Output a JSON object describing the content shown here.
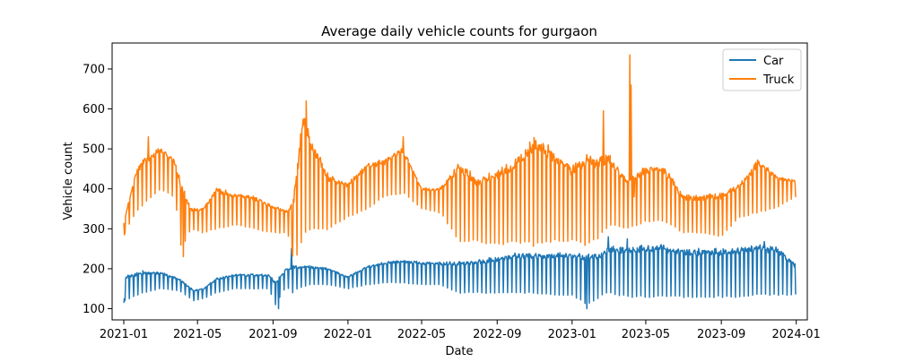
{
  "chart_data": {
    "type": "line",
    "title": "Average daily vehicle counts for gurgaon",
    "xlabel": "Date",
    "ylabel": "Vehicle count",
    "x_ticks": [
      "2021-01",
      "2021-05",
      "2021-09",
      "2022-01",
      "2022-05",
      "2022-09",
      "2023-01",
      "2023-05",
      "2023-09",
      "2024-01"
    ],
    "y_ticks": [
      100,
      200,
      300,
      400,
      500,
      600,
      700
    ],
    "xlim": [
      "2020-12-13",
      "2024-01-19"
    ],
    "ylim": [
      72,
      765
    ],
    "grid": false,
    "legend_position": "top-right",
    "series": [
      {
        "name": "Car",
        "color": "#1f77b4",
        "low_points": [
          [
            "2021-01-01",
            120
          ],
          [
            "2021-02-01",
            140
          ],
          [
            "2021-03-01",
            150
          ],
          [
            "2021-04-01",
            145
          ],
          [
            "2021-04-25",
            120
          ],
          [
            "2021-05-10",
            125
          ],
          [
            "2021-06-01",
            140
          ],
          [
            "2021-07-01",
            150
          ],
          [
            "2021-08-01",
            150
          ],
          [
            "2021-08-25",
            150
          ],
          [
            "2021-09-05",
            110
          ],
          [
            "2021-09-20",
            150
          ],
          [
            "2021-10-10",
            150
          ],
          [
            "2021-11-01",
            160
          ],
          [
            "2021-12-01",
            160
          ],
          [
            "2022-01-01",
            150
          ],
          [
            "2022-02-01",
            160
          ],
          [
            "2022-03-01",
            165
          ],
          [
            "2022-04-01",
            165
          ],
          [
            "2022-05-01",
            160
          ],
          [
            "2022-06-01",
            160
          ],
          [
            "2022-07-01",
            140
          ],
          [
            "2022-08-01",
            140
          ],
          [
            "2022-09-01",
            140
          ],
          [
            "2022-10-01",
            140
          ],
          [
            "2022-11-01",
            140
          ],
          [
            "2022-12-01",
            135
          ],
          [
            "2023-01-01",
            135
          ],
          [
            "2023-01-25",
            110
          ],
          [
            "2023-02-15",
            130
          ],
          [
            "2023-03-01",
            140
          ],
          [
            "2023-04-01",
            130
          ],
          [
            "2023-05-01",
            130
          ],
          [
            "2023-06-01",
            130
          ],
          [
            "2023-07-01",
            130
          ],
          [
            "2023-08-01",
            130
          ],
          [
            "2023-09-01",
            130
          ],
          [
            "2023-10-01",
            130
          ],
          [
            "2023-11-01",
            135
          ],
          [
            "2023-12-01",
            135
          ],
          [
            "2023-12-31",
            135
          ]
        ],
        "high_points": [
          [
            "2021-01-01",
            180
          ],
          [
            "2021-02-01",
            190
          ],
          [
            "2021-03-01",
            190
          ],
          [
            "2021-04-01",
            175
          ],
          [
            "2021-04-25",
            145
          ],
          [
            "2021-05-10",
            150
          ],
          [
            "2021-06-01",
            175
          ],
          [
            "2021-07-01",
            185
          ],
          [
            "2021-08-01",
            185
          ],
          [
            "2021-08-25",
            185
          ],
          [
            "2021-09-05",
            165
          ],
          [
            "2021-09-20",
            195
          ],
          [
            "2021-10-01",
            205
          ],
          [
            "2021-11-01",
            205
          ],
          [
            "2021-12-01",
            200
          ],
          [
            "2022-01-01",
            180
          ],
          [
            "2022-02-01",
            205
          ],
          [
            "2022-03-01",
            215
          ],
          [
            "2022-04-01",
            220
          ],
          [
            "2022-05-01",
            215
          ],
          [
            "2022-06-01",
            215
          ],
          [
            "2022-07-01",
            215
          ],
          [
            "2022-08-01",
            220
          ],
          [
            "2022-09-01",
            225
          ],
          [
            "2022-10-01",
            235
          ],
          [
            "2022-11-01",
            235
          ],
          [
            "2022-12-01",
            235
          ],
          [
            "2023-01-01",
            235
          ],
          [
            "2023-01-25",
            230
          ],
          [
            "2023-02-15",
            235
          ],
          [
            "2023-03-01",
            250
          ],
          [
            "2023-04-01",
            250
          ],
          [
            "2023-05-01",
            255
          ],
          [
            "2023-06-01",
            255
          ],
          [
            "2023-07-01",
            245
          ],
          [
            "2023-08-01",
            245
          ],
          [
            "2023-09-01",
            245
          ],
          [
            "2023-10-01",
            250
          ],
          [
            "2023-11-01",
            255
          ],
          [
            "2023-12-01",
            250
          ],
          [
            "2023-12-31",
            210
          ]
        ],
        "spikes": [
          [
            "2021-01-01",
            115
          ],
          [
            "2021-01-02",
            125
          ],
          [
            "2021-02-01",
            195
          ],
          [
            "2021-09-10",
            100
          ],
          [
            "2021-10-01",
            250
          ],
          [
            "2021-10-03",
            140
          ],
          [
            "2023-01-25",
            100
          ],
          [
            "2023-03-01",
            280
          ],
          [
            "2023-04-01",
            275
          ],
          [
            "2023-11-10",
            268
          ]
        ]
      },
      {
        "name": "Truck",
        "color": "#ff7f0e",
        "low_points": [
          [
            "2021-01-01",
            285
          ],
          [
            "2021-01-20",
            340
          ],
          [
            "2021-02-01",
            360
          ],
          [
            "2021-03-01",
            400
          ],
          [
            "2021-03-25",
            380
          ],
          [
            "2021-04-05",
            250
          ],
          [
            "2021-04-20",
            300
          ],
          [
            "2021-05-10",
            290
          ],
          [
            "2021-06-01",
            300
          ],
          [
            "2021-07-01",
            310
          ],
          [
            "2021-08-01",
            300
          ],
          [
            "2021-09-01",
            290
          ],
          [
            "2021-09-25",
            290
          ],
          [
            "2021-10-05",
            215
          ],
          [
            "2021-10-20",
            280
          ],
          [
            "2021-11-01",
            300
          ],
          [
            "2021-12-01",
            300
          ],
          [
            "2022-01-01",
            330
          ],
          [
            "2022-02-01",
            350
          ],
          [
            "2022-03-01",
            380
          ],
          [
            "2022-04-01",
            390
          ],
          [
            "2022-05-01",
            350
          ],
          [
            "2022-06-01",
            340
          ],
          [
            "2022-07-01",
            270
          ],
          [
            "2022-08-01",
            270
          ],
          [
            "2022-09-01",
            260
          ],
          [
            "2022-10-01",
            270
          ],
          [
            "2022-11-01",
            260
          ],
          [
            "2022-12-01",
            270
          ],
          [
            "2023-01-01",
            270
          ],
          [
            "2023-01-25",
            260
          ],
          [
            "2023-02-15",
            280
          ],
          [
            "2023-03-01",
            310
          ],
          [
            "2023-04-01",
            300
          ],
          [
            "2023-05-01",
            320
          ],
          [
            "2023-06-01",
            320
          ],
          [
            "2023-07-01",
            290
          ],
          [
            "2023-08-01",
            290
          ],
          [
            "2023-09-01",
            280
          ],
          [
            "2023-10-01",
            330
          ],
          [
            "2023-11-01",
            340
          ],
          [
            "2023-12-01",
            355
          ],
          [
            "2023-12-31",
            380
          ]
        ],
        "high_points": [
          [
            "2021-01-01",
            315
          ],
          [
            "2021-01-20",
            440
          ],
          [
            "2021-02-01",
            470
          ],
          [
            "2021-03-01",
            500
          ],
          [
            "2021-03-25",
            470
          ],
          [
            "2021-04-05",
            410
          ],
          [
            "2021-04-20",
            350
          ],
          [
            "2021-05-10",
            350
          ],
          [
            "2021-06-01",
            400
          ],
          [
            "2021-07-01",
            385
          ],
          [
            "2021-08-01",
            380
          ],
          [
            "2021-09-01",
            355
          ],
          [
            "2021-09-25",
            345
          ],
          [
            "2021-10-05",
            380
          ],
          [
            "2021-10-20",
            580
          ],
          [
            "2021-11-01",
            520
          ],
          [
            "2021-12-01",
            430
          ],
          [
            "2022-01-01",
            410
          ],
          [
            "2022-02-01",
            460
          ],
          [
            "2022-03-01",
            470
          ],
          [
            "2022-04-01",
            500
          ],
          [
            "2022-05-01",
            400
          ],
          [
            "2022-06-01",
            400
          ],
          [
            "2022-07-01",
            460
          ],
          [
            "2022-08-01",
            420
          ],
          [
            "2022-09-01",
            440
          ],
          [
            "2022-10-01",
            470
          ],
          [
            "2022-11-01",
            520
          ],
          [
            "2022-12-01",
            490
          ],
          [
            "2023-01-01",
            450
          ],
          [
            "2023-01-25",
            475
          ],
          [
            "2023-02-15",
            470
          ],
          [
            "2023-03-01",
            480
          ],
          [
            "2023-04-01",
            420
          ],
          [
            "2023-05-01",
            450
          ],
          [
            "2023-06-01",
            450
          ],
          [
            "2023-07-01",
            380
          ],
          [
            "2023-08-01",
            380
          ],
          [
            "2023-09-01",
            385
          ],
          [
            "2023-10-01",
            410
          ],
          [
            "2023-11-01",
            470
          ],
          [
            "2023-12-01",
            430
          ],
          [
            "2023-12-31",
            420
          ]
        ],
        "spikes": [
          [
            "2021-01-01",
            315
          ],
          [
            "2021-01-02",
            285
          ],
          [
            "2021-02-10",
            530
          ],
          [
            "2021-04-08",
            230
          ],
          [
            "2021-10-02",
            240
          ],
          [
            "2021-10-25",
            620
          ],
          [
            "2022-04-01",
            530
          ],
          [
            "2023-02-21",
            595
          ],
          [
            "2023-04-05",
            735
          ],
          [
            "2023-04-07",
            660
          ],
          [
            "2023-04-12",
            380
          ]
        ]
      }
    ]
  }
}
